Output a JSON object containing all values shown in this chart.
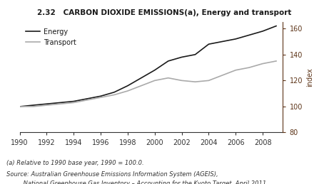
{
  "title": "2.32   CARBON DIOXIDE EMISSIONS(a), Energy and transport",
  "ylabel_right": "index",
  "ylim": [
    80,
    165
  ],
  "yticks": [
    80,
    100,
    120,
    140,
    160
  ],
  "xlim": [
    1990,
    2009.5
  ],
  "xticks": [
    1990,
    1992,
    1994,
    1996,
    1998,
    2000,
    2002,
    2004,
    2006,
    2008
  ],
  "footnote1": "(a) Relative to 1990 base year, 1990 = 100.0.",
  "footnote2": "Source: Australian Greenhouse Emissions Information System (AGEIS),",
  "footnote3": "         National Greenhouse Gas Inventory – Accounting for the Kyoto Target, April 2011.",
  "energy_years": [
    1990,
    1991,
    1992,
    1993,
    1994,
    1995,
    1996,
    1997,
    1998,
    1999,
    2000,
    2001,
    2002,
    2003,
    2004,
    2005,
    2006,
    2007,
    2008,
    2009
  ],
  "energy_values": [
    100,
    101,
    102,
    103,
    104,
    106,
    108,
    111,
    116,
    122,
    128,
    135,
    138,
    140,
    148,
    150,
    152,
    155,
    158,
    162
  ],
  "transport_years": [
    1990,
    1991,
    1992,
    1993,
    1994,
    1995,
    1996,
    1997,
    1998,
    1999,
    2000,
    2001,
    2002,
    2003,
    2004,
    2005,
    2006,
    2007,
    2008,
    2009
  ],
  "transport_values": [
    100,
    100,
    101,
    102,
    103,
    105,
    107,
    109,
    112,
    116,
    120,
    122,
    120,
    119,
    120,
    124,
    128,
    130,
    133,
    135
  ],
  "energy_color": "#1a1a1a",
  "transport_color": "#aaaaaa",
  "title_color": "#5c3317",
  "axis_color": "#5c3317",
  "background_color": "#ffffff"
}
